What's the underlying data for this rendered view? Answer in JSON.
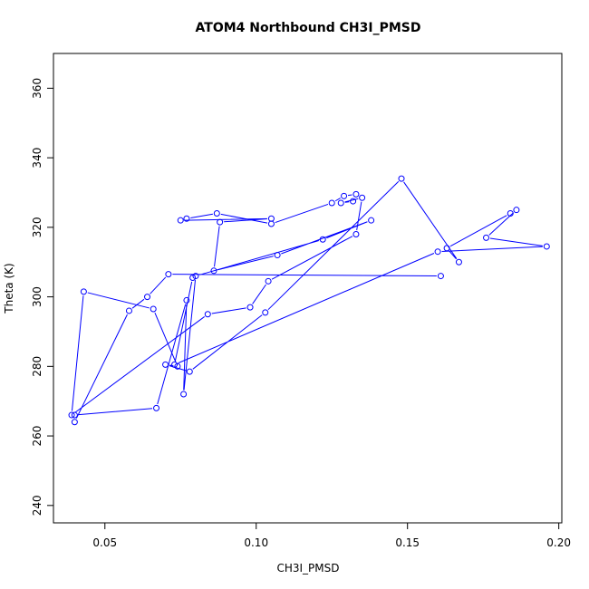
{
  "chart_data": {
    "type": "line",
    "title": "ATOM4 Northbound CH3I_PMSD",
    "xlabel": "CH3I_PMSD",
    "ylabel": "Theta (K)",
    "xlim": [
      0.033,
      0.201
    ],
    "ylim": [
      235,
      370
    ],
    "x_ticks": [
      0.05,
      0.1,
      0.15,
      0.2
    ],
    "x_tick_labels": [
      "0.05",
      "0.10",
      "0.15",
      "0.20"
    ],
    "y_ticks": [
      240,
      260,
      280,
      300,
      320,
      340,
      360
    ],
    "y_tick_labels": [
      "240",
      "260",
      "280",
      "300",
      "320",
      "340",
      "360"
    ],
    "marker": "open-circle",
    "grid": false,
    "line_color": "#0000ff",
    "series": [
      {
        "x": [
          0.161,
          0.071,
          0.064,
          0.058,
          0.04,
          0.04,
          0.067,
          0.077,
          0.076,
          0.08,
          0.122,
          0.138,
          0.107,
          0.086,
          0.088,
          0.105,
          0.075,
          0.077,
          0.087,
          0.105,
          0.125,
          0.129,
          0.133,
          0.132,
          0.128,
          0.135,
          0.133,
          0.104,
          0.098,
          0.084,
          0.039,
          0.043,
          0.066,
          0.074,
          0.07,
          0.078,
          0.103,
          0.148,
          0.167,
          0.163,
          0.184,
          0.186,
          0.176,
          0.196,
          0.16,
          0.073,
          0.079
        ],
        "y": [
          306,
          306.5,
          300,
          296,
          264,
          266,
          268,
          299,
          272,
          306,
          316.5,
          322,
          312,
          307.5,
          321.5,
          322.5,
          322,
          322.5,
          324,
          321,
          327,
          329,
          329.5,
          327.5,
          327,
          328.5,
          318,
          304.5,
          297,
          295,
          266,
          301.5,
          296.5,
          280,
          280.5,
          278.5,
          295.5,
          334,
          310,
          314,
          324,
          325,
          317,
          314.5,
          313,
          280.5,
          305.5
        ]
      }
    ]
  }
}
